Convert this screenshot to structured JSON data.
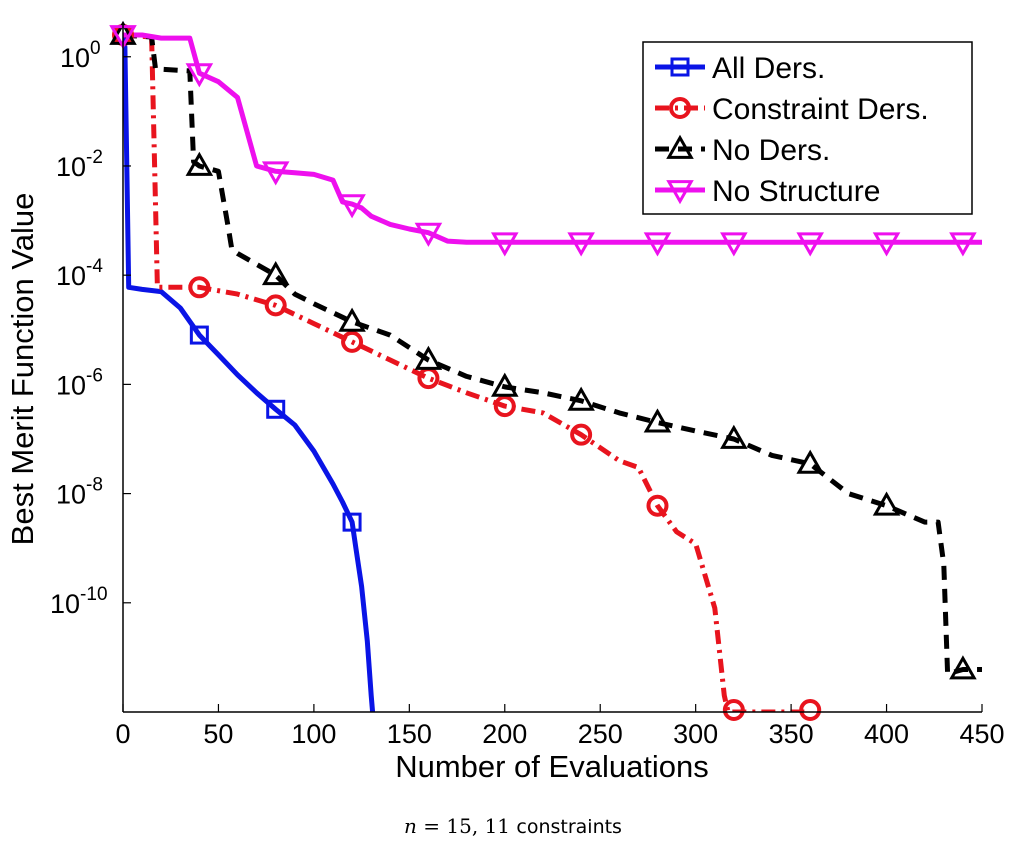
{
  "chart_data": {
    "type": "line",
    "xlabel": "Number of Evaluations",
    "ylabel": "Best Merit Function Value",
    "xlim": [
      0,
      450
    ],
    "ylim_log10": [
      -12,
      0.6
    ],
    "y_scale": "log",
    "x_ticks": [
      "0",
      "50",
      "100",
      "150",
      "200",
      "250",
      "300",
      "350",
      "400",
      "450"
    ],
    "y_ticks": [
      {
        "base": "10",
        "exp": "0",
        "value": 1
      },
      {
        "base": "10",
        "exp": "-2",
        "value": 0.01
      },
      {
        "base": "10",
        "exp": "-4",
        "value": 0.0001
      },
      {
        "base": "10",
        "exp": "-6",
        "value": 1e-06
      },
      {
        "base": "10",
        "exp": "-8",
        "value": 1e-08
      },
      {
        "base": "10",
        "exp": "-10",
        "value": 1e-10
      }
    ],
    "grid": false,
    "legend_position": "top-right",
    "series": [
      {
        "name": "All Ders.",
        "color": "#0a14e6",
        "dash": "solid",
        "marker": "square",
        "x": [
          0,
          1,
          2,
          3,
          10,
          20,
          30,
          40,
          50,
          60,
          70,
          80,
          90,
          100,
          110,
          115,
          120,
          122,
          125,
          128,
          130,
          132,
          133,
          135,
          137
        ],
        "y": [
          2.5,
          1.5,
          0.01,
          6e-05,
          5.5e-05,
          5e-05,
          2.5e-05,
          8e-06,
          3.5e-06,
          1.5e-06,
          7e-07,
          3.5e-07,
          1.8e-07,
          6e-08,
          1.5e-08,
          7e-09,
          3e-09,
          1e-09,
          2e-10,
          2e-11,
          2e-12,
          3e-13,
          3e-14,
          2e-15,
          1e-15
        ],
        "markers_x": [
          0,
          40,
          80,
          120
        ],
        "markers_y": [
          2.5,
          8e-06,
          3.5e-07,
          3e-09
        ]
      },
      {
        "name": "Constraint Ders.",
        "color": "#e8141e",
        "dash": "dashdot",
        "marker": "circle",
        "x": [
          0,
          15,
          17,
          18,
          40,
          60,
          80,
          100,
          120,
          140,
          160,
          180,
          200,
          220,
          240,
          260,
          270,
          280,
          290,
          300,
          310,
          315,
          317,
          320,
          340,
          360
        ],
        "y": [
          2.5,
          2.3,
          0.002,
          6e-05,
          6e-05,
          4.5e-05,
          2.8e-05,
          1.3e-05,
          6e-06,
          2.8e-06,
          1.3e-06,
          7e-07,
          4e-07,
          3e-07,
          1.2e-07,
          4e-08,
          3e-08,
          6e-09,
          2e-09,
          1.2e-09,
          8e-11,
          2e-12,
          1e-12,
          1e-12,
          1e-12,
          1e-12
        ],
        "markers_x": [
          0,
          40,
          80,
          120,
          160,
          200,
          240,
          280,
          320,
          360
        ],
        "markers_y": [
          2.5,
          6e-05,
          2.8e-05,
          6e-06,
          1.3e-06,
          4e-07,
          1.2e-07,
          6e-09,
          1e-12,
          1e-12
        ]
      },
      {
        "name": "No Ders.",
        "color": "#000000",
        "dash": "dashed",
        "marker": "triangle-up",
        "x": [
          0,
          15,
          17,
          35,
          37,
          40,
          50,
          55,
          57,
          60,
          80,
          90,
          100,
          120,
          140,
          160,
          180,
          200,
          220,
          240,
          260,
          280,
          300,
          320,
          340,
          360,
          380,
          400,
          420,
          427,
          430,
          432,
          440,
          450
        ],
        "y": [
          2.5,
          2.3,
          0.6,
          0.55,
          0.012,
          0.01,
          0.008,
          0.0008,
          0.0003,
          0.00025,
          0.0001,
          4.5e-05,
          3e-05,
          1.4e-05,
          8e-06,
          2.8e-06,
          1.4e-06,
          9e-07,
          7e-07,
          5e-07,
          3e-07,
          2e-07,
          1.4e-07,
          1e-07,
          5e-08,
          3.5e-08,
          1e-08,
          6e-09,
          3e-09,
          3e-09,
          5e-10,
          5e-12,
          6e-12,
          6e-12
        ],
        "markers_x": [
          0,
          40,
          80,
          120,
          160,
          200,
          240,
          280,
          320,
          360,
          400,
          440
        ],
        "markers_y": [
          2.5,
          0.01,
          0.0001,
          1.4e-05,
          2.8e-06,
          9e-07,
          5e-07,
          2e-07,
          1e-07,
          3.5e-08,
          6e-09,
          6e-12
        ]
      },
      {
        "name": "No Structure",
        "color": "#ee10ee",
        "dash": "solid",
        "marker": "triangle-down",
        "x": [
          0,
          10,
          20,
          35,
          40,
          50,
          60,
          70,
          80,
          90,
          100,
          110,
          115,
          120,
          125,
          130,
          140,
          150,
          160,
          170,
          180,
          200,
          250,
          300,
          350,
          400,
          450
        ],
        "y": [
          2.5,
          2.5,
          2.2,
          2.2,
          0.5,
          0.35,
          0.18,
          0.01,
          0.008,
          0.0075,
          0.007,
          0.0055,
          0.0022,
          0.002,
          0.0017,
          0.0012,
          0.00085,
          0.0007,
          0.0006,
          0.00042,
          0.0004,
          0.0004,
          0.0004,
          0.0004,
          0.0004,
          0.0004,
          0.0004
        ],
        "markers_x": [
          0,
          40,
          80,
          120,
          160,
          200,
          240,
          280,
          320,
          360,
          400,
          440
        ],
        "markers_y": [
          2.5,
          0.5,
          0.008,
          0.002,
          0.0006,
          0.0004,
          0.0004,
          0.0004,
          0.0004,
          0.0004,
          0.0004,
          0.0004
        ]
      }
    ]
  },
  "caption": {
    "n_symbol": "n",
    "equals": "=",
    "n_value": "15,",
    "constraints_count": "11",
    "constraints_word": "constraints"
  }
}
